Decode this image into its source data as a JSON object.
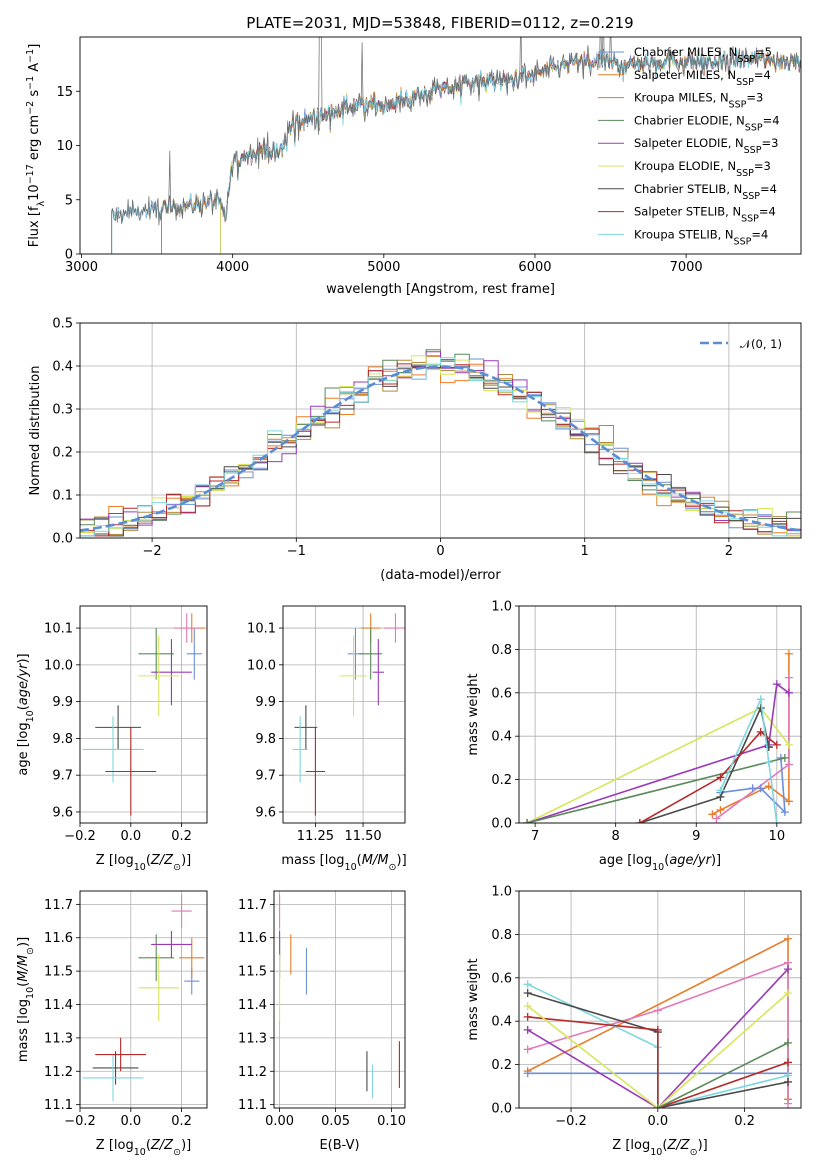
{
  "figure_title": "PLATE=2031, MJD=53848, FIBERID=0112, z=0.219",
  "colors": {
    "Chabrier MILES": "#6d8fd8",
    "Salpeter MILES": "#e87e2a",
    "Kroupa MILES": "#b58a3a",
    "Chabrier ELODIE": "#5a8a5a",
    "Salpeter ELODIE": "#9a3ab8",
    "Kroupa ELODIE": "#d7e65a",
    "Chabrier STELIB": "#4a4a4a",
    "Salpeter STELIB": "#b52a2a",
    "Kroupa STELIB": "#7fd6e0",
    "pink": "#e07ab8",
    "normal_curve": "#5b8dd6",
    "grid": "#b0b0b0"
  },
  "chart_data": [
    {
      "type": "line",
      "id": "spectrum",
      "xlabel": "wavelength [Angstrom, rest frame]",
      "ylabel": "Flux [f_λ10^-17 erg cm^-2 s^-1 A^-1]",
      "xlim": [
        2990,
        7760
      ],
      "ylim": [
        0,
        20
      ],
      "xticks": [
        3000,
        4000,
        5000,
        6000,
        7000
      ],
      "yticks": [
        0,
        5,
        10,
        15
      ],
      "legend_position": "right",
      "legend": [
        {
          "name": "Chabrier MILES",
          "nssp": "5"
        },
        {
          "name": "Salpeter MILES",
          "nssp": "4"
        },
        {
          "name": "Kroupa MILES",
          "nssp": "3"
        },
        {
          "name": "Chabrier ELODIE",
          "nssp": "4"
        },
        {
          "name": "Salpeter ELODIE",
          "nssp": "3"
        },
        {
          "name": "Kroupa ELODIE",
          "nssp": "3"
        },
        {
          "name": "Chabrier STELIB",
          "nssp": "4"
        },
        {
          "name": "Salpeter STELIB",
          "nssp": "4"
        },
        {
          "name": "Kroupa STELIB",
          "nssp": "4"
        }
      ],
      "series_start_wavelength": {
        "Chabrier MILES": 3200,
        "Salpeter MILES": 3530,
        "Kroupa MILES": 3530,
        "Chabrier ELODIE": 3920,
        "Salpeter ELODIE": 3920,
        "Kroupa ELODIE": 3920,
        "Chabrier STELIB": 3200,
        "Salpeter STELIB": 3530,
        "Kroupa STELIB": 3200
      },
      "continuum": [
        [
          3200,
          3.6
        ],
        [
          3400,
          4.0
        ],
        [
          3600,
          4.2
        ],
        [
          3700,
          4.5
        ],
        [
          3900,
          5.0
        ],
        [
          3950,
          3.2
        ],
        [
          4000,
          8.5
        ],
        [
          4200,
          9.8
        ],
        [
          4300,
          9.2
        ],
        [
          4400,
          12.0
        ],
        [
          4600,
          12.8
        ],
        [
          4800,
          13.8
        ],
        [
          5000,
          13.8
        ],
        [
          5200,
          14.5
        ],
        [
          5400,
          15.2
        ],
        [
          5600,
          16.0
        ],
        [
          5800,
          16.0
        ],
        [
          6000,
          16.5
        ],
        [
          6200,
          17.5
        ],
        [
          6400,
          17.8
        ],
        [
          6600,
          17.5
        ],
        [
          6800,
          17.8
        ],
        [
          7000,
          17.8
        ],
        [
          7200,
          17.6
        ],
        [
          7400,
          18.0
        ],
        [
          7700,
          17.8
        ]
      ]
    },
    {
      "type": "line",
      "id": "residual_histogram",
      "xlabel": "(data-model)/error",
      "ylabel": "Normed distribution",
      "xlim": [
        -2.5,
        2.5
      ],
      "ylim": [
        0,
        0.5
      ],
      "xticks": [
        -2,
        -1,
        0,
        1,
        2
      ],
      "yticks": [
        0.0,
        0.1,
        0.2,
        0.3,
        0.4,
        0.5
      ],
      "legend_position": "top-right",
      "normal_curve_label": "N(0,1)",
      "bin_width": 0.1
    },
    {
      "type": "scatter",
      "id": "age_vs_Z",
      "xlabel": "Z [log10(Z/Z⊙)]",
      "ylabel": "age  [log10(age/yr)]",
      "xlim": [
        -0.2,
        0.3
      ],
      "ylim": [
        9.57,
        10.16
      ],
      "xticks": [
        -0.2,
        0.0,
        0.2
      ],
      "yticks": [
        9.6,
        9.7,
        9.8,
        9.9,
        10.0,
        10.1
      ],
      "points": [
        {
          "s": "Chabrier MILES",
          "x": 0.25,
          "y": 10.03,
          "xe": 0.03,
          "ye": 0.07
        },
        {
          "s": "Salpeter MILES",
          "x": 0.24,
          "y": 10.1,
          "xe": 0.05,
          "ye": 0.04
        },
        {
          "s": "pink",
          "x": 0.22,
          "y": 10.1,
          "xe": 0.05,
          "ye": 0.04
        },
        {
          "s": "Chabrier ELODIE",
          "x": 0.1,
          "y": 10.03,
          "xe": 0.07,
          "ye": 0.07
        },
        {
          "s": "Salpeter ELODIE",
          "x": 0.16,
          "y": 9.98,
          "xe": 0.08,
          "ye": 0.09
        },
        {
          "s": "Kroupa ELODIE",
          "x": 0.11,
          "y": 9.97,
          "xe": 0.08,
          "ye": 0.11
        },
        {
          "s": "Chabrier STELIB",
          "x": -0.05,
          "y": 9.83,
          "xe": 0.09,
          "ye": 0.06
        },
        {
          "s": "Kroupa STELIB",
          "x": -0.07,
          "y": 9.77,
          "xe": 0.12,
          "ye": 0.09
        },
        {
          "s": "Salpeter STELIB",
          "x": 0.0,
          "y": 9.71,
          "xe": 0.1,
          "ye": 0.12
        }
      ]
    },
    {
      "type": "scatter",
      "id": "age_vs_mass",
      "xlabel": "mass [log10(M/M⊙)]",
      "ylabel": "",
      "xlim": [
        11.08,
        11.72
      ],
      "ylim": [
        9.57,
        10.16
      ],
      "xticks": [
        11.25,
        11.5
      ],
      "yticks": [
        9.6,
        9.7,
        9.8,
        9.9,
        10.0,
        10.1
      ],
      "points": [
        {
          "s": "Chabrier MILES",
          "x": 11.46,
          "y": 10.03,
          "xe": 0.04,
          "ye": 0.07
        },
        {
          "s": "Salpeter MILES",
          "x": 11.54,
          "y": 10.1,
          "xe": 0.05,
          "ye": 0.04
        },
        {
          "s": "pink",
          "x": 11.67,
          "y": 10.1,
          "xe": 0.06,
          "ye": 0.04
        },
        {
          "s": "Chabrier ELODIE",
          "x": 11.54,
          "y": 10.03,
          "xe": 0.06,
          "ye": 0.07
        },
        {
          "s": "Salpeter ELODIE",
          "x": 11.58,
          "y": 9.98,
          "xe": 0.03,
          "ye": 0.09
        },
        {
          "s": "Kroupa ELODIE",
          "x": 11.45,
          "y": 9.97,
          "xe": 0.07,
          "ye": 0.11
        },
        {
          "s": "Chabrier STELIB",
          "x": 11.2,
          "y": 9.83,
          "xe": 0.06,
          "ye": 0.06
        },
        {
          "s": "Kroupa STELIB",
          "x": 11.17,
          "y": 9.77,
          "xe": 0.04,
          "ye": 0.09
        },
        {
          "s": "Salpeter STELIB",
          "x": 11.25,
          "y": 9.71,
          "xe": 0.05,
          "ye": 0.12
        }
      ]
    },
    {
      "type": "line",
      "id": "massweight_vs_age",
      "xlabel": "age  [log10(age/yr)]",
      "ylabel": "mass weight",
      "xlim": [
        6.8,
        10.3
      ],
      "ylim": [
        0,
        1
      ],
      "xticks": [
        7,
        8,
        9,
        10
      ],
      "yticks": [
        0.0,
        0.2,
        0.4,
        0.6,
        0.8,
        1.0
      ],
      "series": [
        {
          "s": "Salpeter MILES",
          "x": [
            9.2,
            9.3,
            9.9,
            10.15,
            10.15
          ],
          "y": [
            0.04,
            0.06,
            0.17,
            0.1,
            0.78
          ]
        },
        {
          "s": "pink",
          "x": [
            9.25,
            10.15,
            10.15
          ],
          "y": [
            0.02,
            0.27,
            0.67
          ]
        },
        {
          "s": "Chabrier MILES",
          "x": [
            9.3,
            9.7,
            9.8,
            10.1,
            10.05
          ],
          "y": [
            0.14,
            0.16,
            0.16,
            0.05,
            0.3
          ]
        },
        {
          "s": "Kroupa ELODIE",
          "x": [
            6.9,
            9.8,
            10.15
          ],
          "y": [
            0.0,
            0.53,
            0.36
          ]
        },
        {
          "s": "Salpeter ELODIE",
          "x": [
            6.9,
            9.9,
            10.0,
            10.15
          ],
          "y": [
            0.0,
            0.36,
            0.64,
            0.6
          ]
        },
        {
          "s": "Chabrier ELODIE",
          "x": [
            6.9,
            10.1
          ],
          "y": [
            0.0,
            0.3
          ]
        },
        {
          "s": "Chabrier STELIB",
          "x": [
            8.3,
            9.3,
            9.8,
            9.9,
            9.9
          ],
          "y": [
            0.0,
            0.12,
            0.53,
            0.35,
            0.35
          ]
        },
        {
          "s": "Salpeter STELIB",
          "x": [
            8.3,
            9.3,
            9.8,
            10.0
          ],
          "y": [
            0.0,
            0.21,
            0.42,
            0.36
          ]
        },
        {
          "s": "Kroupa STELIB",
          "x": [
            9.3,
            9.8,
            9.9,
            10.0
          ],
          "y": [
            0.15,
            0.57,
            0.28,
            0.0
          ]
        }
      ]
    },
    {
      "type": "scatter",
      "id": "mass_vs_Z",
      "xlabel": "Z [log10(Z/Z⊙)]",
      "ylabel": "mass [log10(M/M⊙)]",
      "xlim": [
        -0.2,
        0.3
      ],
      "ylim": [
        11.09,
        11.74
      ],
      "xticks": [
        -0.2,
        0.0,
        0.2
      ],
      "yticks": [
        11.1,
        11.2,
        11.3,
        11.4,
        11.5,
        11.6,
        11.7
      ],
      "points": [
        {
          "s": "Chabrier MILES",
          "x": 0.24,
          "y": 11.47,
          "xe": 0.03,
          "ye": 0.04
        },
        {
          "s": "Salpeter MILES",
          "x": 0.24,
          "y": 11.54,
          "xe": 0.05,
          "ye": 0.06
        },
        {
          "s": "pink",
          "x": 0.2,
          "y": 11.68,
          "xe": 0.04,
          "ye": 0.05
        },
        {
          "s": "Chabrier ELODIE",
          "x": 0.1,
          "y": 11.54,
          "xe": 0.07,
          "ye": 0.07
        },
        {
          "s": "Salpeter ELODIE",
          "x": 0.16,
          "y": 11.58,
          "xe": 0.08,
          "ye": 0.04
        },
        {
          "s": "Kroupa ELODIE",
          "x": 0.11,
          "y": 11.45,
          "xe": 0.08,
          "ye": 0.1
        },
        {
          "s": "Chabrier STELIB",
          "x": -0.06,
          "y": 11.21,
          "xe": 0.09,
          "ye": 0.05
        },
        {
          "s": "Kroupa STELIB",
          "x": -0.07,
          "y": 11.18,
          "xe": 0.12,
          "ye": 0.07
        },
        {
          "s": "Salpeter STELIB",
          "x": -0.04,
          "y": 11.25,
          "xe": 0.1,
          "ye": 0.05
        }
      ]
    },
    {
      "type": "scatter",
      "id": "mass_vs_EBV",
      "xlabel": "E(B-V)",
      "ylabel": "",
      "xlim": [
        -0.005,
        0.112
      ],
      "ylim": [
        11.09,
        11.74
      ],
      "xticks": [
        0.0,
        0.05,
        0.1
      ],
      "yticks": [
        11.1,
        11.2,
        11.3,
        11.4,
        11.5,
        11.6,
        11.7
      ],
      "points": [
        {
          "s": "pink",
          "x": 0.0,
          "y": 11.68,
          "xe": 0,
          "ye": 0.05
        },
        {
          "s": "Salpeter ELODIE",
          "x": 0.0,
          "y": 11.58,
          "xe": 0,
          "ye": 0.04
        },
        {
          "s": "Chabrier ELODIE",
          "x": 0.0,
          "y": 11.54,
          "xe": 0,
          "ye": 0.06
        },
        {
          "s": "Kroupa ELODIE",
          "x": 0.0,
          "y": 11.45,
          "xe": 0,
          "ye": 0.1
        },
        {
          "s": "Salpeter MILES",
          "x": 0.01,
          "y": 11.55,
          "xe": 0,
          "ye": 0.06
        },
        {
          "s": "Chabrier MILES",
          "x": 0.024,
          "y": 11.5,
          "xe": 0,
          "ye": 0.07
        },
        {
          "s": "Chabrier STELIB",
          "x": 0.078,
          "y": 11.2,
          "xe": 0,
          "ye": 0.06
        },
        {
          "s": "Kroupa STELIB",
          "x": 0.083,
          "y": 11.17,
          "xe": 0,
          "ye": 0.05
        },
        {
          "s": "Salpeter STELIB",
          "x": 0.107,
          "y": 11.22,
          "xe": 0,
          "ye": 0.07
        }
      ]
    },
    {
      "type": "line",
      "id": "massweight_vs_Z",
      "xlabel": "Z [log10(Z/Z⊙)]",
      "ylabel": "mass weight",
      "xlim": [
        -0.32,
        0.33
      ],
      "ylim": [
        0,
        1
      ],
      "xticks": [
        -0.2,
        0.0,
        0.2
      ],
      "yticks": [
        0.0,
        0.2,
        0.4,
        0.6,
        0.8,
        1.0
      ],
      "series": [
        {
          "s": "Salpeter MILES",
          "x": [
            -0.3,
            0.3,
            0.3
          ],
          "y": [
            0.17,
            0.78,
            0.04
          ]
        },
        {
          "s": "pink",
          "x": [
            -0.3,
            0.0,
            0.3,
            0.3
          ],
          "y": [
            0.27,
            0.45,
            0.67,
            0.02
          ]
        },
        {
          "s": "Chabrier MILES",
          "x": [
            -0.3,
            0.0,
            0.3
          ],
          "y": [
            0.16,
            0.16,
            0.16
          ]
        },
        {
          "s": "Kroupa STELIB",
          "x": [
            -0.3,
            0.0,
            0.0,
            0.3
          ],
          "y": [
            0.57,
            0.28,
            0.0,
            0.15
          ]
        },
        {
          "s": "Chabrier STELIB",
          "x": [
            -0.3,
            0.0,
            0.0,
            0.3
          ],
          "y": [
            0.53,
            0.35,
            0.0,
            0.12
          ]
        },
        {
          "s": "Salpeter STELIB",
          "x": [
            -0.3,
            0.0,
            0.0,
            0.3
          ],
          "y": [
            0.42,
            0.36,
            0.0,
            0.21
          ]
        },
        {
          "s": "Salpeter ELODIE",
          "x": [
            -0.3,
            0.0,
            0.3
          ],
          "y": [
            0.36,
            0.0,
            0.64
          ]
        },
        {
          "s": "Kroupa ELODIE",
          "x": [
            -0.3,
            0.0,
            0.3
          ],
          "y": [
            0.47,
            0.0,
            0.53
          ]
        },
        {
          "s": "Chabrier ELODIE",
          "x": [
            0.0,
            0.3
          ],
          "y": [
            0.0,
            0.3
          ]
        }
      ]
    }
  ]
}
